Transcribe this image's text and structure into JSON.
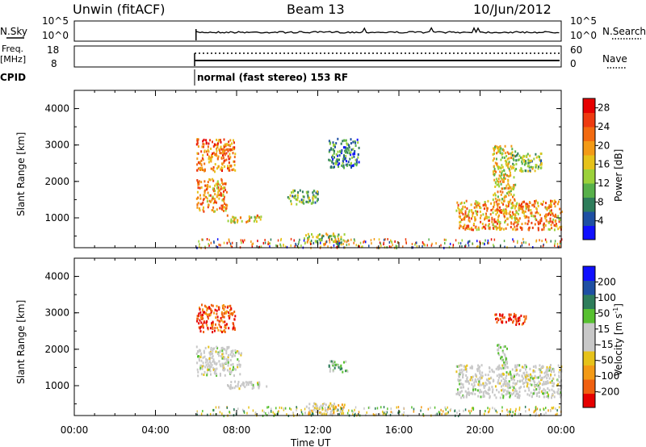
{
  "header": {
    "station": "Unwin (fitACF)",
    "beam": "Beam 13",
    "date": "10/Jun/2012"
  },
  "status_panels": {
    "nsky_label": "N.Sky",
    "nsky_ticks": [
      "10^5",
      "10^0"
    ],
    "nsearch_label": "N.Search",
    "nsearch_ticks": [
      "10^5",
      "10^0"
    ],
    "freq_label_1": "Freq.",
    "freq_label_2": "[MHz]",
    "freq_ticks": [
      "18",
      "8"
    ],
    "nave_label": "Nave",
    "nave_ticks": [
      "60",
      "0"
    ],
    "cpid_label": "CPID",
    "cpid_text": "normal (fast stereo) 153 RF"
  },
  "colors": {
    "power_scale": [
      "#1010ff",
      "#1e4fa3",
      "#2e7d5b",
      "#57b04a",
      "#9bd13a",
      "#e6c21a",
      "#f39a16",
      "#f26a10",
      "#ee3a10",
      "#e60000"
    ],
    "velocity_scale": [
      "#e60000",
      "#f06010",
      "#f39a16",
      "#e6c21a",
      "#c8c8c8",
      "#c8c8c8",
      "#57c030",
      "#2e7d5b",
      "#1e4fa3",
      "#1010ff"
    ],
    "ground_scatter": "#c8c8c8"
  },
  "chart_data": [
    {
      "type": "heatmap",
      "panel": "power",
      "ylabel": "Slant Range [km]",
      "ylim": [
        180,
        4500
      ],
      "yticks": [
        "1000",
        "2000",
        "3000",
        "4000"
      ],
      "xlim_hours": [
        0,
        24
      ],
      "colorbar_label": "Power [dB]",
      "colorbar_ticks": [
        "4",
        "8",
        "12",
        "16",
        "20",
        "24",
        "28"
      ],
      "colorbar_range": [
        0,
        30
      ],
      "regions": [
        {
          "t": [
            6.0,
            7.9
          ],
          "r": [
            2300,
            3200
          ],
          "v": 22
        },
        {
          "t": [
            6.0,
            7.5
          ],
          "r": [
            1200,
            2100
          ],
          "v": 20
        },
        {
          "t": [
            7.5,
            9.2
          ],
          "r": [
            900,
            1100
          ],
          "v": 18
        },
        {
          "t": [
            10.5,
            12.0
          ],
          "r": [
            1400,
            1800
          ],
          "v": 10
        },
        {
          "t": [
            11.3,
            13.3
          ],
          "r": [
            300,
            600
          ],
          "v": 14
        },
        {
          "t": [
            12.5,
            14.0
          ],
          "r": [
            2400,
            3200
          ],
          "v": 8
        },
        {
          "t": [
            18.8,
            24.0
          ],
          "r": [
            700,
            1500
          ],
          "v": 20
        },
        {
          "t": [
            20.6,
            21.7
          ],
          "r": [
            1500,
            3000
          ],
          "v": 16
        },
        {
          "t": [
            21.5,
            23.0
          ],
          "r": [
            2300,
            2800
          ],
          "v": 12
        }
      ]
    },
    {
      "type": "heatmap",
      "panel": "velocity",
      "ylabel": "Slant Range [km]",
      "ylim": [
        180,
        4500
      ],
      "yticks": [
        "1000",
        "2000",
        "3000",
        "4000"
      ],
      "xlabel": "Time UT",
      "xticks": [
        "00:00",
        "04:00",
        "08:00",
        "12:00",
        "16:00",
        "20:00",
        "00:00"
      ],
      "xlim_hours": [
        0,
        24
      ],
      "colorbar_label": "Velocity [m s",
      "colorbar_label_sup": "-1",
      "colorbar_label_end": "]",
      "colorbar_ticks": [
        "-200",
        "-100",
        "-50",
        "-15",
        "15",
        "50",
        "100",
        "200"
      ],
      "colorbar_range": [
        -250,
        250
      ],
      "regions": [
        {
          "t": [
            6.0,
            7.9
          ],
          "r": [
            2500,
            3250
          ],
          "v": -180
        },
        {
          "t": [
            6.0,
            8.2
          ],
          "r": [
            1300,
            2100
          ],
          "v": 0
        },
        {
          "t": [
            7.5,
            9.5
          ],
          "r": [
            950,
            1150
          ],
          "v": 0
        },
        {
          "t": [
            11.3,
            13.3
          ],
          "r": [
            250,
            550
          ],
          "v": -60
        },
        {
          "t": [
            12.5,
            13.5
          ],
          "r": [
            1400,
            1700
          ],
          "v": 80
        },
        {
          "t": [
            18.8,
            24.0
          ],
          "r": [
            700,
            1600
          ],
          "v": 0
        },
        {
          "t": [
            20.7,
            22.3
          ],
          "r": [
            2700,
            3000
          ],
          "v": -200
        },
        {
          "t": [
            20.8,
            21.3
          ],
          "r": [
            1500,
            2200
          ],
          "v": 40
        }
      ]
    }
  ]
}
